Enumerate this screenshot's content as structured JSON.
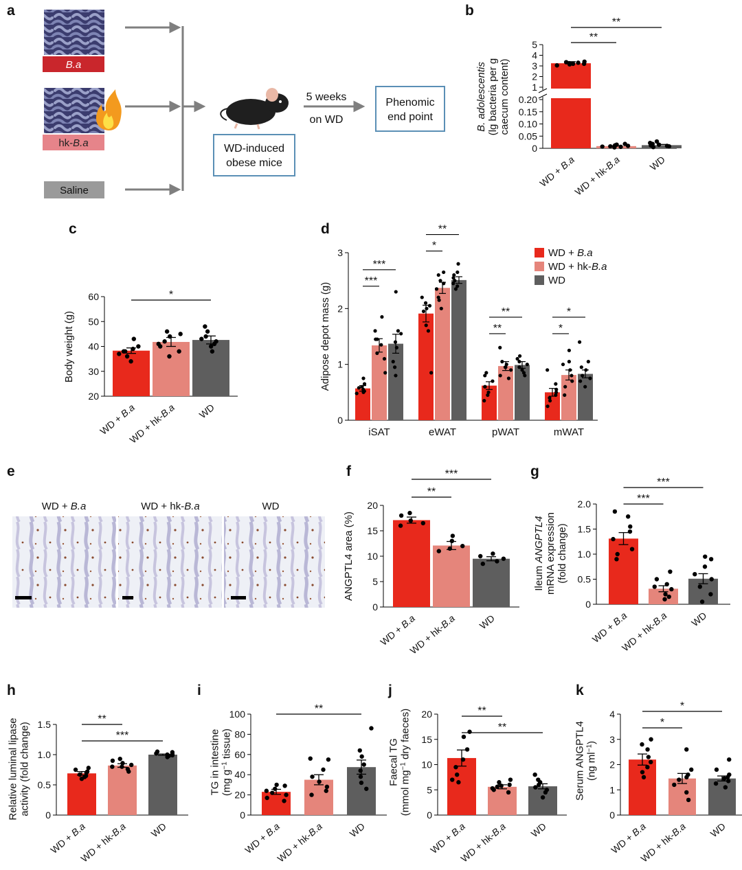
{
  "colors": {
    "ba": "#E8291C",
    "hk": "#E5857B",
    "wd": "#5E5E5E",
    "line": "#7f7f7f",
    "box": "#5a8fb5"
  },
  "panel_a": {
    "label": "a",
    "groups": [
      {
        "prefix": "",
        "italic": "B.a",
        "label_color": "#C9262C"
      },
      {
        "prefix": "hk-",
        "italic": "B.a",
        "label_color": "#E6848A"
      },
      {
        "prefix": "Saline",
        "italic": "",
        "label_color": "#9a9a9a"
      }
    ],
    "mice_line1": "WD-induced",
    "mice_line2": "obese mice",
    "arrow_line1": "5 weeks",
    "arrow_line2": "on WD",
    "end_line1": "Phenomic",
    "end_line2": "end point"
  },
  "panel_e": {
    "label": "e",
    "captions": [
      {
        "prefix": "WD + ",
        "italic": "B.a"
      },
      {
        "prefix": "WD + hk-",
        "italic": "B.a"
      },
      {
        "prefix": "WD",
        "italic": ""
      }
    ]
  },
  "chart_data": [
    {
      "panel": "b",
      "type": "bar",
      "categories": [
        "WD + B.a",
        "WD + hk-B.a",
        "WD"
      ],
      "values": [
        3.25,
        0.009,
        0.013
      ],
      "errors": [
        0.15,
        0.002,
        0.003
      ],
      "ylabel_italic": "B. adolescentis",
      "ylabel_line2": "(lg bacteria per g",
      "ylabel_line3": "caecum content)",
      "axis_break": true,
      "upper_ticks": [
        "5",
        "4",
        "3",
        "2",
        "1"
      ],
      "lower_ticks": [
        "0.20",
        "0.15",
        "0.10",
        "0.05",
        "0"
      ],
      "points": [
        [
          3.05,
          3.15,
          3.2,
          3.25,
          3.3,
          3.35,
          3.4,
          3.2
        ],
        [
          0.004,
          0.006,
          0.007,
          0.008,
          0.01,
          0.012,
          0.015,
          0.018
        ],
        [
          0.005,
          0.008,
          0.01,
          0.012,
          0.015,
          0.018,
          0.022,
          0.028
        ]
      ],
      "significance": [
        {
          "from": 0,
          "to": 1,
          "label": "**"
        },
        {
          "from": 0,
          "to": 2,
          "label": "**"
        }
      ]
    },
    {
      "panel": "c",
      "type": "bar",
      "categories": [
        "WD + B.a",
        "WD + hk-B.a",
        "WD"
      ],
      "values": [
        38.3,
        41.8,
        42.6
      ],
      "errors": [
        1.1,
        1.8,
        1.6
      ],
      "ylabel": "Body weight (g)",
      "ylim": [
        20,
        60
      ],
      "yticks": [
        20,
        30,
        40,
        50,
        60
      ],
      "points": [
        [
          34,
          36,
          37,
          38,
          38,
          39,
          40,
          43
        ],
        [
          36,
          38,
          40,
          41,
          42,
          44,
          45,
          46
        ],
        [
          38,
          40,
          41,
          42,
          43,
          44,
          46,
          48
        ]
      ],
      "significance": [
        {
          "from": 0,
          "to": 2,
          "label": "*"
        }
      ]
    },
    {
      "panel": "d",
      "type": "grouped-bar",
      "groups": [
        "iSAT",
        "eWAT",
        "pWAT",
        "mWAT"
      ],
      "series": [
        {
          "prefix": "WD + ",
          "italic": "B.a",
          "values": [
            0.57,
            1.91,
            0.62,
            0.5
          ],
          "errors": [
            0.05,
            0.15,
            0.07,
            0.07
          ]
        },
        {
          "prefix": "WD + hk-",
          "italic": "B.a",
          "values": [
            1.34,
            2.37,
            0.97,
            0.81
          ],
          "errors": [
            0.12,
            0.1,
            0.08,
            0.09
          ]
        },
        {
          "prefix": "WD",
          "italic": "",
          "values": [
            1.37,
            2.51,
            0.99,
            0.83
          ],
          "errors": [
            0.17,
            0.06,
            0.06,
            0.07
          ]
        }
      ],
      "ylabel": "Adipose depot mass (g)",
      "ylim": [
        0,
        3
      ],
      "yticks": [
        0,
        1,
        2,
        3
      ],
      "legend": "top-right",
      "points": [
        [
          [
            0.48,
            0.5,
            0.52,
            0.55,
            0.58,
            0.6,
            0.65,
            0.75
          ],
          [
            0.85,
            1.1,
            1.2,
            1.35,
            1.45,
            1.6,
            1.85,
            1.45
          ],
          [
            0.8,
            0.95,
            1.05,
            1.3,
            1.4,
            1.55,
            1.6,
            2.3
          ]
        ],
        [
          [
            0.85,
            1.6,
            1.7,
            1.95,
            2.0,
            2.1,
            2.2,
            2.05
          ],
          [
            2.0,
            2.15,
            2.2,
            2.35,
            2.45,
            2.5,
            2.6,
            2.65
          ],
          [
            2.35,
            2.4,
            2.45,
            2.5,
            2.55,
            2.6,
            2.65,
            2.8
          ]
        ],
        [
          [
            0.35,
            0.45,
            0.5,
            0.6,
            0.7,
            0.8,
            0.85,
            0.6
          ],
          [
            0.75,
            0.8,
            0.9,
            0.95,
            1.0,
            1.05,
            1.3,
            0.95
          ],
          [
            0.8,
            0.85,
            0.9,
            1.0,
            1.05,
            1.1,
            1.15,
            0.95
          ]
        ],
        [
          [
            0.25,
            0.35,
            0.4,
            0.45,
            0.5,
            0.55,
            0.65,
            0.9
          ],
          [
            0.45,
            0.6,
            0.7,
            0.8,
            0.9,
            1.0,
            1.05,
            1.25
          ],
          [
            0.6,
            0.7,
            0.75,
            0.8,
            0.9,
            0.95,
            1.05,
            1.4
          ]
        ]
      ],
      "significance": [
        {
          "group": 0,
          "from": 0,
          "to": 1,
          "label": "***"
        },
        {
          "group": 0,
          "from": 0,
          "to": 2,
          "label": "***"
        },
        {
          "group": 1,
          "from": 0,
          "to": 1,
          "label": "*"
        },
        {
          "group": 1,
          "from": 0,
          "to": 2,
          "label": "**"
        },
        {
          "group": 2,
          "from": 0,
          "to": 1,
          "label": "**"
        },
        {
          "group": 2,
          "from": 0,
          "to": 2,
          "label": "**"
        },
        {
          "group": 3,
          "from": 0,
          "to": 1,
          "label": "*"
        },
        {
          "group": 3,
          "from": 0,
          "to": 2,
          "label": "*"
        }
      ]
    },
    {
      "panel": "f",
      "type": "bar",
      "categories": [
        "WD + B.a",
        "WD + hk-B.a",
        "WD"
      ],
      "values": [
        17.1,
        12.1,
        9.5
      ],
      "errors": [
        0.6,
        0.8,
        0.4
      ],
      "ylabel": "ANGPTL4 area (%)",
      "ylim": [
        0,
        20
      ],
      "yticks": [
        0,
        5,
        10,
        15,
        20
      ],
      "points": [
        [
          16.0,
          16.5,
          17.0,
          18.0,
          18.5
        ],
        [
          11.0,
          11.5,
          12.0,
          13.0,
          14.0
        ],
        [
          8.5,
          9.0,
          9.5,
          10.0,
          10.5
        ]
      ],
      "significance": [
        {
          "from": 0,
          "to": 1,
          "label": "**"
        },
        {
          "from": 0,
          "to": 2,
          "label": "***"
        }
      ]
    },
    {
      "panel": "g",
      "type": "bar",
      "categories": [
        "WD + B.a",
        "WD + hk-B.a",
        "WD"
      ],
      "values": [
        1.31,
        0.31,
        0.51
      ],
      "errors": [
        0.12,
        0.06,
        0.1
      ],
      "ylabel_line1_prefix": "Ileum ",
      "ylabel_line1_italic": "ANGPTL4",
      "ylabel_line2": "mRNA expression",
      "ylabel_line3": "(fold change)",
      "ylim": [
        0,
        2.0
      ],
      "yticks": [
        "0",
        "0.5",
        "1.0",
        "1.5",
        "2.0"
      ],
      "points": [
        [
          0.9,
          1.0,
          1.1,
          1.3,
          1.45,
          1.55,
          1.75,
          1.85
        ],
        [
          0.1,
          0.15,
          0.2,
          0.3,
          0.35,
          0.4,
          0.5,
          0.65
        ],
        [
          0.05,
          0.2,
          0.35,
          0.5,
          0.6,
          0.75,
          0.9,
          0.95
        ]
      ],
      "significance": [
        {
          "from": 0,
          "to": 1,
          "label": "***"
        },
        {
          "from": 0,
          "to": 2,
          "label": "***"
        }
      ]
    },
    {
      "panel": "h",
      "type": "bar",
      "categories": [
        "WD + B.a",
        "WD + hk-B.a",
        "WD"
      ],
      "values": [
        0.69,
        0.82,
        1.0
      ],
      "errors": [
        0.03,
        0.03,
        0.01
      ],
      "ylabel_line1": "Relative luminal lipase",
      "ylabel_line2": "activity (fold change)",
      "ylim": [
        0,
        1.5
      ],
      "yticks": [
        "0",
        "0.5",
        "1.0",
        "1.5"
      ],
      "points": [
        [
          0.6,
          0.63,
          0.67,
          0.7,
          0.72,
          0.75,
          0.78,
          0.65
        ],
        [
          0.72,
          0.76,
          0.8,
          0.83,
          0.86,
          0.9,
          0.93,
          0.8
        ],
        [
          0.96,
          0.98,
          0.99,
          1.0,
          1.01,
          1.02,
          1.04,
          1.05
        ]
      ],
      "significance": [
        {
          "from": 0,
          "to": 1,
          "label": "**"
        },
        {
          "from": 0,
          "to": 2,
          "label": "***"
        }
      ]
    },
    {
      "panel": "i",
      "type": "bar",
      "categories": [
        "WD + B.a",
        "WD + hk-B.a",
        "WD"
      ],
      "values": [
        23,
        35,
        47.5
      ],
      "errors": [
        2.5,
        5,
        7
      ],
      "ylabel": "TG in intestine",
      "ylabel_unit": "(mg g",
      "ylabel_unit_sup": "−1",
      "ylabel_unit_tail": " tissue)",
      "ylim": [
        0,
        100
      ],
      "yticks": [
        0,
        20,
        40,
        60,
        80,
        100
      ],
      "points": [
        [
          14,
          17,
          20,
          22,
          24,
          26,
          29,
          30
        ],
        [
          20,
          24,
          28,
          33,
          38,
          45,
          55,
          56
        ],
        [
          26,
          32,
          38,
          44,
          50,
          58,
          64,
          86
        ]
      ],
      "significance": [
        {
          "from": 0,
          "to": 2,
          "label": "**"
        }
      ]
    },
    {
      "panel": "j",
      "type": "bar",
      "categories": [
        "WD + B.a",
        "WD + hk-B.a",
        "WD"
      ],
      "values": [
        11.3,
        5.6,
        5.7
      ],
      "errors": [
        1.6,
        0.4,
        0.5
      ],
      "ylabel": "Faecal TG",
      "ylabel_unit": "(mmol mg",
      "ylabel_unit_sup": "−1",
      "ylabel_unit_tail": " dry faeces)",
      "ylim": [
        0,
        20
      ],
      "yticks": [
        0,
        5,
        10,
        15,
        20
      ],
      "points": [
        [
          6.5,
          7.0,
          8.0,
          9.5,
          11.0,
          13.0,
          15.5,
          16.5
        ],
        [
          4.5,
          5.0,
          5.3,
          5.6,
          5.8,
          6.0,
          6.5,
          7.0
        ],
        [
          3.5,
          4.5,
          5.0,
          5.5,
          6.0,
          6.5,
          7.0,
          8.0
        ]
      ],
      "significance": [
        {
          "from": 0,
          "to": 1,
          "label": "**"
        },
        {
          "from": 0,
          "to": 2,
          "label": "**"
        }
      ]
    },
    {
      "panel": "k",
      "type": "bar",
      "categories": [
        "WD + B.a",
        "WD + hk-B.a",
        "WD"
      ],
      "values": [
        2.2,
        1.45,
        1.45
      ],
      "errors": [
        0.22,
        0.2,
        0.1
      ],
      "ylabel": "Serum ANGPTL4",
      "ylabel_unit": "(ng ml",
      "ylabel_unit_sup": "−1",
      "ylabel_unit_tail": ")",
      "ylim": [
        0,
        4
      ],
      "yticks": [
        0,
        1,
        2,
        3,
        4
      ],
      "points": [
        [
          1.5,
          1.7,
          1.9,
          2.1,
          2.3,
          2.6,
          2.8,
          3.0
        ],
        [
          0.6,
          0.9,
          1.2,
          1.4,
          1.5,
          1.6,
          1.8,
          2.6
        ],
        [
          1.1,
          1.25,
          1.35,
          1.45,
          1.5,
          1.6,
          1.8,
          2.2
        ]
      ],
      "significance": [
        {
          "from": 0,
          "to": 1,
          "label": "*"
        },
        {
          "from": 0,
          "to": 2,
          "label": "*"
        }
      ]
    }
  ]
}
